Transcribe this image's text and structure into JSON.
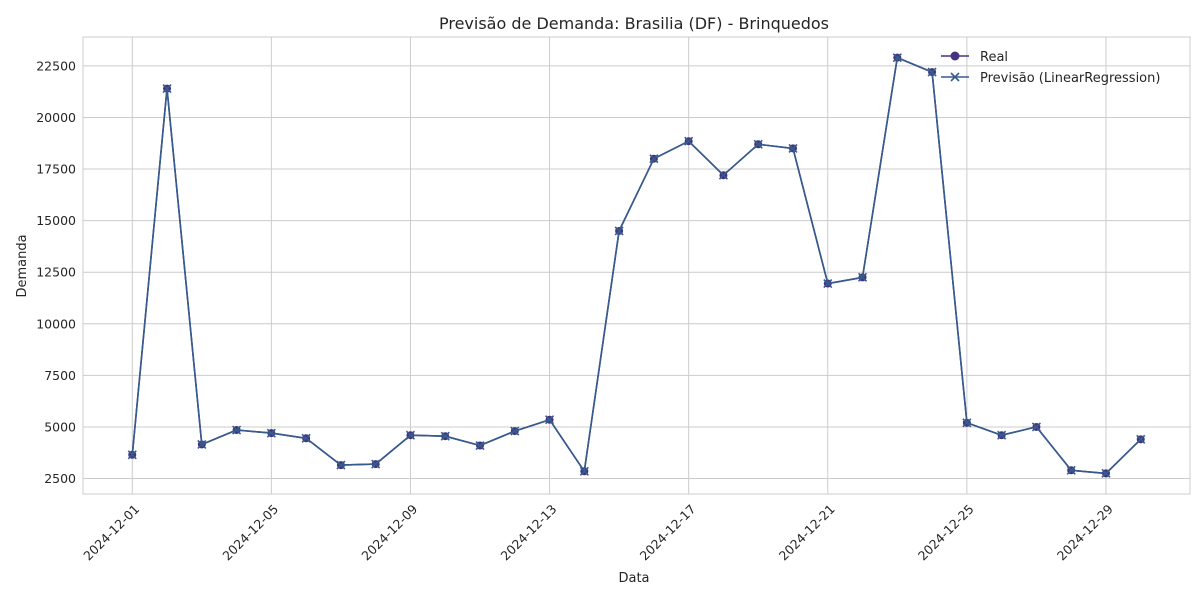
{
  "chart_data": {
    "type": "line",
    "title": "Previsão de Demanda: Brasilia (DF) - Brinquedos",
    "xlabel": "Data",
    "ylabel": "Demanda",
    "x": [
      "2024-12-01",
      "2024-12-02",
      "2024-12-03",
      "2024-12-04",
      "2024-12-05",
      "2024-12-06",
      "2024-12-07",
      "2024-12-08",
      "2024-12-09",
      "2024-12-10",
      "2024-12-11",
      "2024-12-12",
      "2024-12-13",
      "2024-12-14",
      "2024-12-15",
      "2024-12-16",
      "2024-12-17",
      "2024-12-18",
      "2024-12-19",
      "2024-12-20",
      "2024-12-21",
      "2024-12-22",
      "2024-12-23",
      "2024-12-24",
      "2024-12-25",
      "2024-12-26",
      "2024-12-27",
      "2024-12-28",
      "2024-12-29",
      "2024-12-30"
    ],
    "series": [
      {
        "name": "Real",
        "marker": "circle",
        "color": "#46327e",
        "values": [
          3650,
          21400,
          4150,
          4850,
          4700,
          4450,
          3150,
          3200,
          4600,
          4550,
          4100,
          4800,
          5350,
          2850,
          14500,
          18000,
          18850,
          17200,
          18700,
          18500,
          11950,
          12250,
          22900,
          22200,
          5200,
          4600,
          5000,
          2900,
          2750,
          4400
        ]
      },
      {
        "name": "Previsão (LinearRegression)",
        "marker": "x",
        "color": "#365c8d",
        "values": [
          3650,
          21400,
          4150,
          4850,
          4700,
          4450,
          3150,
          3200,
          4600,
          4550,
          4100,
          4800,
          5350,
          2850,
          14500,
          18000,
          18850,
          17200,
          18700,
          18500,
          11950,
          12250,
          22900,
          22200,
          5200,
          4600,
          5000,
          2900,
          2750,
          4400
        ]
      }
    ],
    "x_tick_labels": [
      "2024-12-01",
      "2024-12-05",
      "2024-12-09",
      "2024-12-13",
      "2024-12-17",
      "2024-12-21",
      "2024-12-25",
      "2024-12-29"
    ],
    "y_ticks": [
      2500,
      5000,
      7500,
      10000,
      12500,
      15000,
      17500,
      20000,
      22500
    ],
    "y_tick_labels": [
      "2500",
      "5000",
      "7500",
      "10000",
      "12500",
      "15000",
      "17500",
      "20000",
      "22500"
    ],
    "ylim": [
      1750,
      23900
    ],
    "xlim": [
      "2024-11-29T14:00",
      "2024-12-31T10:00"
    ],
    "grid": true,
    "legend_position": "top-right"
  }
}
